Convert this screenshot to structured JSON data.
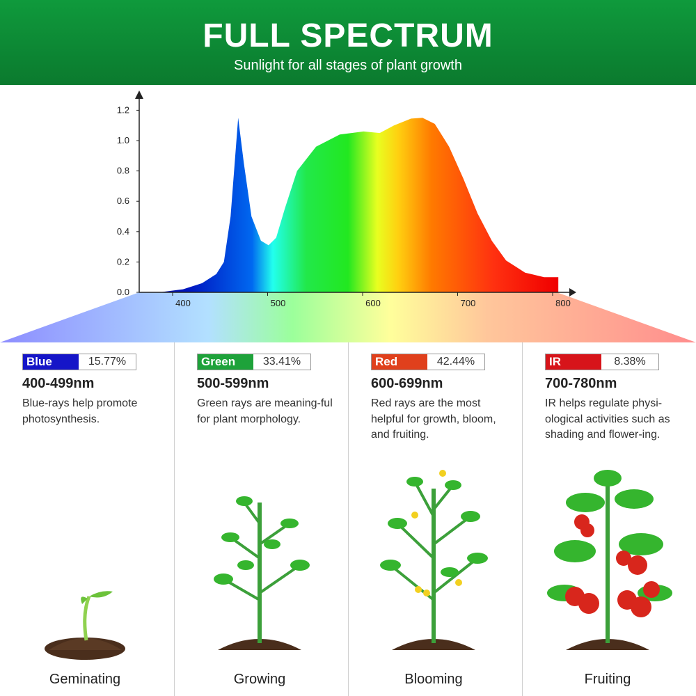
{
  "header": {
    "title": "FULL SPECTRUM",
    "subtitle": "Sunlight for all stages of plant growth"
  },
  "chart_data": {
    "type": "area",
    "title": "",
    "xlabel": "",
    "ylabel": "",
    "xlim": [
      354,
      815
    ],
    "ylim": [
      0,
      1.25
    ],
    "x_ticks": [
      400,
      500,
      600,
      700,
      800
    ],
    "y_ticks": [
      "0.0",
      "0.2",
      "0.4",
      "0.6",
      "0.8",
      "1.0",
      "1.2"
    ],
    "grid": false,
    "fill": "spectral gradient",
    "points": [
      [
        375,
        0
      ],
      [
        400,
        0.02
      ],
      [
        420,
        0.06
      ],
      [
        435,
        0.12
      ],
      [
        443,
        0.2
      ],
      [
        450,
        0.5
      ],
      [
        458,
        1.15
      ],
      [
        464,
        0.85
      ],
      [
        472,
        0.5
      ],
      [
        482,
        0.34
      ],
      [
        490,
        0.31
      ],
      [
        498,
        0.36
      ],
      [
        507,
        0.55
      ],
      [
        520,
        0.8
      ],
      [
        540,
        0.96
      ],
      [
        565,
        1.04
      ],
      [
        590,
        1.06
      ],
      [
        607,
        1.05
      ],
      [
        622,
        1.1
      ],
      [
        640,
        1.145
      ],
      [
        652,
        1.15
      ],
      [
        665,
        1.11
      ],
      [
        680,
        0.96
      ],
      [
        695,
        0.75
      ],
      [
        710,
        0.52
      ],
      [
        725,
        0.34
      ],
      [
        740,
        0.21
      ],
      [
        760,
        0.13
      ],
      [
        780,
        0.1
      ],
      [
        795,
        0.1
      ]
    ]
  },
  "bands": [
    {
      "name": "Blue",
      "percent": "15.77%",
      "color": "#1515c8",
      "range": "400-499nm",
      "desc": "Blue-rays help promote photosynthesis.",
      "stage": "Geminating"
    },
    {
      "name": "Green",
      "percent": "33.41%",
      "color": "#1ea23a",
      "range": "500-599nm",
      "desc": "Green rays are meaning-ful for plant morphology.",
      "stage": "Growing"
    },
    {
      "name": "Red",
      "percent": "42.44%",
      "color": "#e0401c",
      "range": "600-699nm",
      "desc": "Red rays are the most helpful for growth, bloom, and fruiting.",
      "stage": "Blooming"
    },
    {
      "name": "IR",
      "percent": "8.38%",
      "color": "#d7141a",
      "range": "700-780nm",
      "desc": "IR  helps regulate physi-ological activities such as shading and flower-ing.",
      "stage": "Fruiting"
    }
  ]
}
